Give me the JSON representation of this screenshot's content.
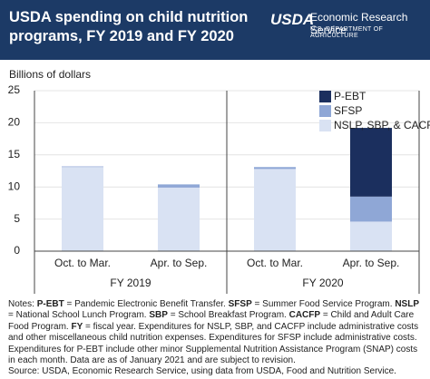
{
  "header": {
    "logo": "USDA",
    "agency": "Economic Research Service",
    "department": "U.S. DEPARTMENT OF AGRICULTURE"
  },
  "chart_data": {
    "type": "stacked-bar",
    "title": "USDA spending on child nutrition programs, FY 2019 and FY 2020",
    "y_label": "Billions of dollars",
    "categories": [
      "Oct. to Mar.",
      "Apr. to Sep.",
      "Oct. to Mar.",
      "Apr. to Sep."
    ],
    "groups": [
      "FY 2019",
      "FY 2020"
    ],
    "series": [
      {
        "name": "NSLP, SBP, & CACFP",
        "color": "#d9e2f3",
        "values": [
          13.1,
          9.9,
          12.8,
          4.6
        ]
      },
      {
        "name": "SFSP",
        "color": "#8fa7d6",
        "values": [
          0.1,
          0.5,
          0.3,
          3.9
        ]
      },
      {
        "name": "P-EBT",
        "color": "#1b2f5e",
        "values": [
          0,
          0,
          0,
          10.7
        ]
      }
    ],
    "ylim": [
      0,
      25
    ],
    "yticks": [
      0,
      5,
      10,
      15,
      20,
      25
    ],
    "grid": true,
    "legend": "top-right"
  },
  "notes": [
    "Notes: ",
    "P-EBT",
    " = Pandemic Electronic Benefit Transfer. ",
    "SFSP",
    " = Summer Food Service Program. ",
    "NSLP",
    " = National School Lunch Program. ",
    "SBP",
    " = School Breakfast Program. ",
    "CACFP",
    " = Child and Adult Care Food Program. ",
    "FY",
    " = fiscal year. Expenditures for NSLP, SBP, and CACFP include administrative costs and other miscellaneous child nutrition expenses. Expenditures for SFSP include administrative costs. Expenditures for P-EBT include other minor Supplemental Nutrition Assistance Program (SNAP) costs in each month. Data are as of January 2021 and are subject to revision."
  ],
  "source": "Source: USDA, Economic Research Service, using data from USDA, Food and Nutrition Service."
}
